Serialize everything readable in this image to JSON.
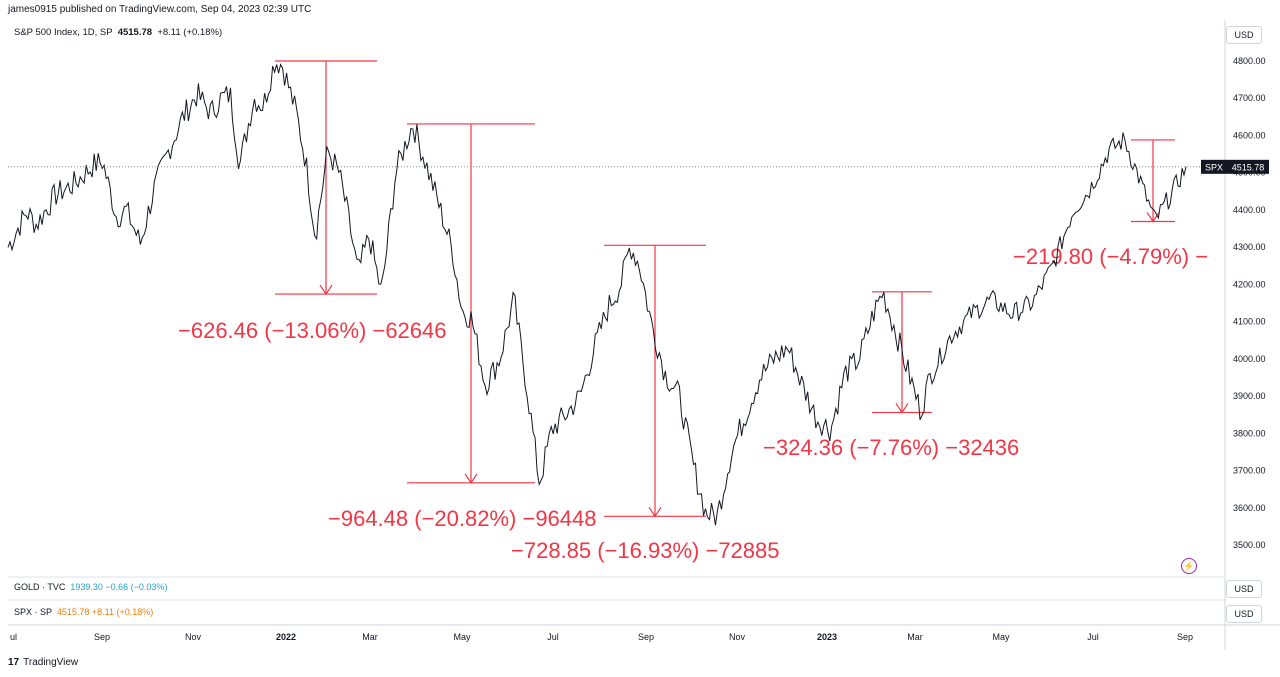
{
  "publish_info": "james0915 published on TradingView.com, Sep 04, 2023 02:39 UTC",
  "main_legend": {
    "symbol": "S&P 500 Index, 1D, SP",
    "price": "4515.78",
    "change": "+8.11 (+0.18%)"
  },
  "currency_label": "USD",
  "price_tag": {
    "symbol": "SPX",
    "value": "4515.78"
  },
  "panes": [
    {
      "symbol": "GOLD · TVC",
      "values": "1939.30  −0.66 (−0.03%)",
      "currency": "USD"
    },
    {
      "symbol": "SPX · SP",
      "values": "4515.78  +8.11 (+0.18%)",
      "currency": "USD"
    }
  ],
  "footer": {
    "logo": "17",
    "brand": "TradingView"
  },
  "chart_data": {
    "type": "line",
    "series": [
      {
        "name": "S&P 500 Index",
        "color": "#131722"
      }
    ],
    "x_tick_labels": [
      "ul",
      "Sep",
      "Nov",
      "2022",
      "Mar",
      "May",
      "Jul",
      "Sep",
      "Nov",
      "2023",
      "Mar",
      "May",
      "Jul",
      "Sep"
    ],
    "y_tick_labels": [
      "4800.00",
      "4700.00",
      "4600.00",
      "4500.00",
      "4400.00",
      "4300.00",
      "4200.00",
      "4100.00",
      "4000.00",
      "3900.00",
      "3800.00",
      "3700.00",
      "3600.00",
      "3500.00"
    ],
    "ylim": [
      3450,
      4830
    ],
    "last_value": 4515.78,
    "keypoints": [
      {
        "t": 0.0,
        "v": 4300
      },
      {
        "t": 0.02,
        "v": 4395
      },
      {
        "t": 0.03,
        "v": 4360
      },
      {
        "t": 0.05,
        "v": 4440
      },
      {
        "t": 0.07,
        "v": 4470
      },
      {
        "t": 0.09,
        "v": 4520
      },
      {
        "t": 0.1,
        "v": 4530
      },
      {
        "t": 0.115,
        "v": 4380
      },
      {
        "t": 0.125,
        "v": 4400
      },
      {
        "t": 0.14,
        "v": 4310
      },
      {
        "t": 0.155,
        "v": 4460
      },
      {
        "t": 0.17,
        "v": 4560
      },
      {
        "t": 0.185,
        "v": 4650
      },
      {
        "t": 0.2,
        "v": 4710
      },
      {
        "t": 0.215,
        "v": 4660
      },
      {
        "t": 0.225,
        "v": 4700
      },
      {
        "t": 0.235,
        "v": 4710
      },
      {
        "t": 0.245,
        "v": 4520
      },
      {
        "t": 0.26,
        "v": 4700
      },
      {
        "t": 0.27,
        "v": 4680
      },
      {
        "t": 0.282,
        "v": 4800
      },
      {
        "t": 0.29,
        "v": 4790
      },
      {
        "t": 0.305,
        "v": 4660
      },
      {
        "t": 0.315,
        "v": 4530
      },
      {
        "t": 0.325,
        "v": 4330
      },
      {
        "t": 0.338,
        "v": 4560
      },
      {
        "t": 0.35,
        "v": 4500
      },
      {
        "t": 0.36,
        "v": 4380
      },
      {
        "t": 0.37,
        "v": 4230
      },
      {
        "t": 0.382,
        "v": 4330
      },
      {
        "t": 0.395,
        "v": 4174
      },
      {
        "t": 0.41,
        "v": 4500
      },
      {
        "t": 0.42,
        "v": 4575
      },
      {
        "t": 0.428,
        "v": 4631
      },
      {
        "t": 0.44,
        "v": 4540
      },
      {
        "t": 0.455,
        "v": 4420
      },
      {
        "t": 0.47,
        "v": 4290
      },
      {
        "t": 0.48,
        "v": 4130
      },
      {
        "t": 0.49,
        "v": 4110
      },
      {
        "t": 0.505,
        "v": 3930
      },
      {
        "t": 0.52,
        "v": 4000
      },
      {
        "t": 0.535,
        "v": 4160
      },
      {
        "t": 0.55,
        "v": 3900
      },
      {
        "t": 0.562,
        "v": 3667
      },
      {
        "t": 0.575,
        "v": 3810
      },
      {
        "t": 0.59,
        "v": 3850
      },
      {
        "t": 0.605,
        "v": 3900
      },
      {
        "t": 0.62,
        "v": 4030
      },
      {
        "t": 0.635,
        "v": 4140
      },
      {
        "t": 0.648,
        "v": 4200
      },
      {
        "t": 0.658,
        "v": 4305
      },
      {
        "t": 0.668,
        "v": 4250
      },
      {
        "t": 0.68,
        "v": 4100
      },
      {
        "t": 0.695,
        "v": 3960
      },
      {
        "t": 0.71,
        "v": 3900
      },
      {
        "t": 0.725,
        "v": 3710
      },
      {
        "t": 0.738,
        "v": 3585
      },
      {
        "t": 0.75,
        "v": 3577
      },
      {
        "t": 0.765,
        "v": 3750
      },
      {
        "t": 0.78,
        "v": 3850
      },
      {
        "t": 0.795,
        "v": 3950
      },
      {
        "t": 0.81,
        "v": 4000
      },
      {
        "t": 0.825,
        "v": 4030
      },
      {
        "t": 0.84,
        "v": 3930
      },
      {
        "t": 0.855,
        "v": 3840
      },
      {
        "t": 0.87,
        "v": 3810
      },
      {
        "t": 0.885,
        "v": 3960
      },
      {
        "t": 0.9,
        "v": 4000
      },
      {
        "t": 0.915,
        "v": 4120
      },
      {
        "t": 0.925,
        "v": 4180
      },
      {
        "t": 0.938,
        "v": 4080
      },
      {
        "t": 0.95,
        "v": 3980
      },
      {
        "t": 0.965,
        "v": 3860
      },
      {
        "t": 0.975,
        "v": 3950
      }
    ],
    "keypoints_tail": [
      {
        "t": 0.0,
        "v": 3950
      },
      {
        "t": 0.08,
        "v": 4060
      },
      {
        "t": 0.16,
        "v": 4120
      },
      {
        "t": 0.24,
        "v": 4160
      },
      {
        "t": 0.32,
        "v": 4120
      },
      {
        "t": 0.4,
        "v": 4150
      },
      {
        "t": 0.48,
        "v": 4250
      },
      {
        "t": 0.56,
        "v": 4400
      },
      {
        "t": 0.62,
        "v": 4450
      },
      {
        "t": 0.7,
        "v": 4560
      },
      {
        "t": 0.76,
        "v": 4588
      },
      {
        "t": 0.82,
        "v": 4480
      },
      {
        "t": 0.88,
        "v": 4370
      },
      {
        "t": 0.94,
        "v": 4440
      },
      {
        "t": 1.0,
        "v": 4515.78
      }
    ],
    "measurements": [
      {
        "top": 4800,
        "bottom": 4174,
        "label": "−626.46 (−13.06%) −62646"
      },
      {
        "top": 4631,
        "bottom": 3667,
        "label": "−964.48 (−20.82%) −96448"
      },
      {
        "top": 4305,
        "bottom": 3577,
        "label": "−728.85 (−16.93%) −72885"
      },
      {
        "top": 4180,
        "bottom": 3856,
        "label": "−324.36 (−7.76%) −32436"
      },
      {
        "top": 4588,
        "bottom": 4369,
        "label": "−219.80 (−4.79%) −"
      }
    ],
    "annotation_color": "#f23645",
    "grid": false
  }
}
